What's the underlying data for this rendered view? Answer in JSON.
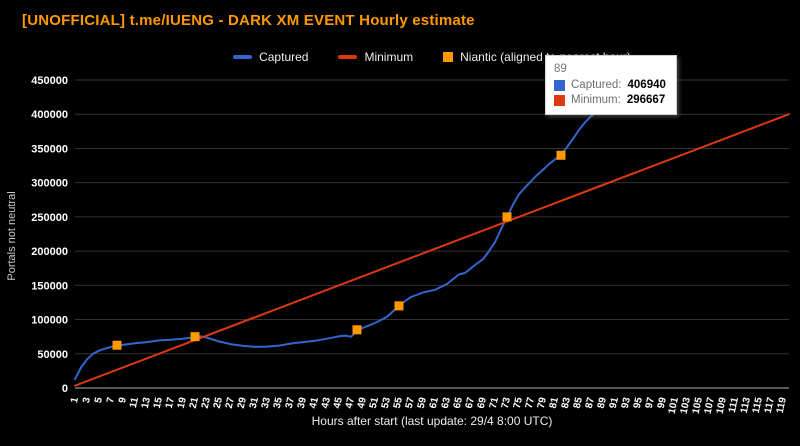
{
  "title": "[UNOFFICIAL] t.me/IUENG - DARK XM EVENT Hourly estimate",
  "colors": {
    "title": "#ff9900",
    "captured": "#3366cc",
    "minimum": "#dc3912",
    "niantic": "#ff9900",
    "background": "#000000",
    "grid": "#333333",
    "baseline": "#b0b0b0",
    "axis_text": "#ffffff"
  },
  "legend": {
    "items": [
      {
        "label": "Captured",
        "marker": "line",
        "color": "#3366cc"
      },
      {
        "label": "Minimum",
        "marker": "line",
        "color": "#dc3912"
      },
      {
        "label": "Niantic (aligned to nearest hour)",
        "marker": "square",
        "color": "#ff9900"
      }
    ]
  },
  "tooltip": {
    "hour": "89",
    "rows": [
      {
        "label": "Captured",
        "value": "406940",
        "color": "#3366cc"
      },
      {
        "label": "Minimum",
        "value": "296667",
        "color": "#dc3912"
      }
    ]
  },
  "chart_data": {
    "type": "line",
    "title": "[UNOFFICIAL] t.me/IUENG - DARK XM EVENT Hourly estimate",
    "xlabel": "Hours after start (last update: 29/4  8:00 UTC)",
    "ylabel": "Portals not neutral",
    "xlim": [
      1,
      120
    ],
    "ylim": [
      0,
      450000
    ],
    "grid": "horizontal",
    "legend_position": "top",
    "y_ticks": [
      0,
      50000,
      100000,
      150000,
      200000,
      250000,
      300000,
      350000,
      400000,
      450000
    ],
    "x_ticks": [
      1,
      3,
      5,
      7,
      9,
      11,
      13,
      15,
      17,
      19,
      21,
      23,
      25,
      27,
      29,
      31,
      33,
      35,
      37,
      39,
      41,
      43,
      45,
      47,
      49,
      51,
      53,
      55,
      57,
      59,
      61,
      63,
      65,
      67,
      69,
      71,
      73,
      75,
      77,
      79,
      81,
      83,
      85,
      87,
      89,
      91,
      93,
      95,
      97,
      99,
      101,
      103,
      105,
      107,
      109,
      111,
      113,
      115,
      117,
      119
    ],
    "series": [
      {
        "name": "Captured",
        "type": "line",
        "color": "#3366cc",
        "points": [
          [
            1,
            13000
          ],
          [
            2,
            30000
          ],
          [
            3,
            42000
          ],
          [
            4,
            50000
          ],
          [
            5,
            54500
          ],
          [
            6,
            57500
          ],
          [
            7,
            60000
          ],
          [
            8,
            61500
          ],
          [
            9,
            63000
          ],
          [
            11,
            65500
          ],
          [
            13,
            67000
          ],
          [
            15,
            69500
          ],
          [
            17,
            70500
          ],
          [
            19,
            72000
          ],
          [
            21,
            74500
          ],
          [
            22,
            75500
          ],
          [
            23,
            73500
          ],
          [
            25,
            68000
          ],
          [
            27,
            64000
          ],
          [
            29,
            61500
          ],
          [
            31,
            60000
          ],
          [
            33,
            60500
          ],
          [
            35,
            62000
          ],
          [
            37,
            65000
          ],
          [
            39,
            67000
          ],
          [
            41,
            69000
          ],
          [
            43,
            72000
          ],
          [
            45,
            75500
          ],
          [
            46,
            76500
          ],
          [
            47,
            75000
          ],
          [
            48,
            83000
          ],
          [
            49,
            88000
          ],
          [
            51,
            95000
          ],
          [
            53,
            104000
          ],
          [
            55,
            120000
          ],
          [
            56,
            127000
          ],
          [
            57,
            133000
          ],
          [
            59,
            139500
          ],
          [
            61,
            143500
          ],
          [
            63,
            152000
          ],
          [
            64,
            159000
          ],
          [
            65,
            166000
          ],
          [
            66,
            168000
          ],
          [
            67,
            175000
          ],
          [
            68,
            182000
          ],
          [
            69,
            188000
          ],
          [
            70,
            200000
          ],
          [
            71,
            213000
          ],
          [
            72,
            232000
          ],
          [
            73,
            250000
          ],
          [
            74,
            268000
          ],
          [
            75,
            283000
          ],
          [
            76,
            293000
          ],
          [
            77,
            302000
          ],
          [
            78,
            311000
          ],
          [
            79,
            319000
          ],
          [
            80,
            327000
          ],
          [
            81,
            334000
          ],
          [
            82,
            341000
          ],
          [
            83,
            352000
          ],
          [
            84,
            364000
          ],
          [
            85,
            377000
          ],
          [
            86,
            388000
          ],
          [
            87,
            397000
          ],
          [
            88,
            403000
          ],
          [
            89,
            406940
          ]
        ]
      },
      {
        "name": "Minimum",
        "type": "line",
        "color": "#dc3912",
        "points": [
          [
            1,
            3333
          ],
          [
            120,
            400000
          ]
        ]
      },
      {
        "name": "Niantic (aligned to nearest hour)",
        "type": "scatter",
        "marker": "square",
        "color": "#ff9900",
        "points": [
          [
            8,
            62500
          ],
          [
            21,
            75000
          ],
          [
            48,
            85000
          ],
          [
            55,
            120000
          ],
          [
            73,
            250000
          ],
          [
            82,
            340000
          ]
        ]
      }
    ]
  }
}
